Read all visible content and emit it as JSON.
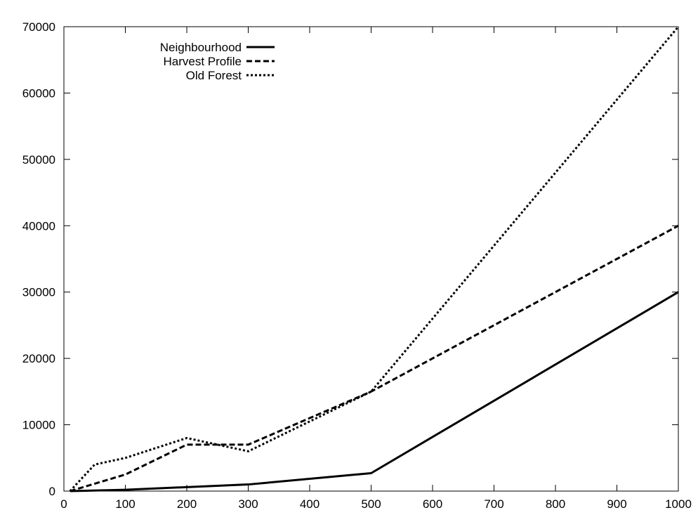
{
  "chart_data": {
    "type": "line",
    "title": "",
    "xlabel": "",
    "ylabel": "",
    "xlim": [
      0,
      1000
    ],
    "ylim": [
      0,
      70000
    ],
    "xticks": [
      0,
      100,
      200,
      300,
      400,
      500,
      600,
      700,
      800,
      900,
      1000
    ],
    "yticks": [
      0,
      10000,
      20000,
      30000,
      40000,
      50000,
      60000,
      70000
    ],
    "grid": false,
    "legend_position": "top-left",
    "series": [
      {
        "name": "Neighbourhood",
        "dash": "solid",
        "color": "#000000",
        "x": [
          10,
          100,
          200,
          300,
          500,
          1000
        ],
        "y": [
          0,
          200,
          600,
          1000,
          2700,
          30000
        ]
      },
      {
        "name": "Harvest Profile",
        "dash": "dashed",
        "color": "#000000",
        "x": [
          10,
          100,
          200,
          300,
          500,
          1000
        ],
        "y": [
          0,
          2500,
          7000,
          7000,
          15000,
          40000
        ]
      },
      {
        "name": "Old Forest",
        "dash": "dotted",
        "color": "#000000",
        "x": [
          10,
          50,
          100,
          200,
          300,
          500,
          1000
        ],
        "y": [
          0,
          4000,
          5000,
          8000,
          6000,
          15000,
          70000
        ]
      }
    ]
  }
}
